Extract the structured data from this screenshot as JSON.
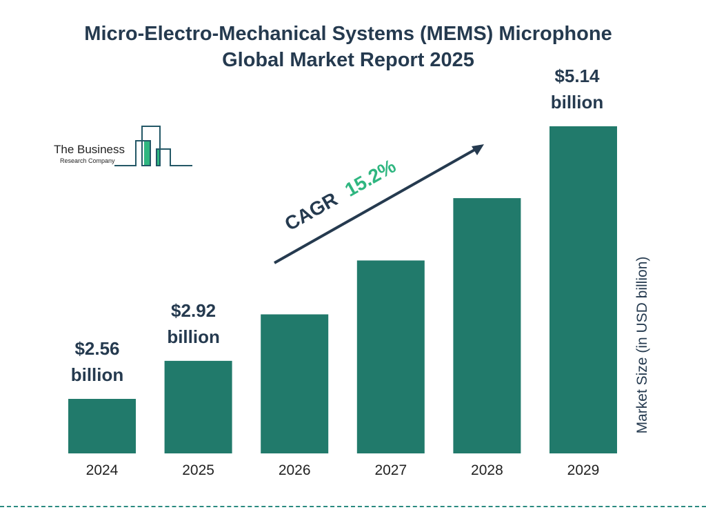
{
  "title_lines": [
    "Micro-Electro-Mechanical Systems (MEMS) Microphone",
    "Global Market Report 2025"
  ],
  "logo": {
    "line1": "The Business",
    "line2": "Research Company"
  },
  "colors": {
    "bar": "#217a6b",
    "text": "#253a4f",
    "accent": "#2fb680",
    "footer": "#2a8a80"
  },
  "chart_data": {
    "type": "bar",
    "categories": [
      "2024",
      "2025",
      "2026",
      "2027",
      "2028",
      "2029"
    ],
    "values": [
      2.56,
      2.92,
      3.36,
      3.87,
      4.46,
      5.14
    ],
    "data_labels": [
      {
        "index": 0,
        "value": "$2.56",
        "unit": "billion"
      },
      {
        "index": 1,
        "value": "$2.92",
        "unit": "billion"
      },
      {
        "index": 5,
        "value": "$5.14",
        "unit": "billion"
      }
    ],
    "title": "Micro-Electro-Mechanical Systems (MEMS) Microphone Global Market Report 2025",
    "xlabel": "",
    "ylabel": "Market Size (in USD billion)",
    "annotation": {
      "label": "CAGR",
      "value": "15.2%"
    },
    "grid": false,
    "legend": "none"
  }
}
